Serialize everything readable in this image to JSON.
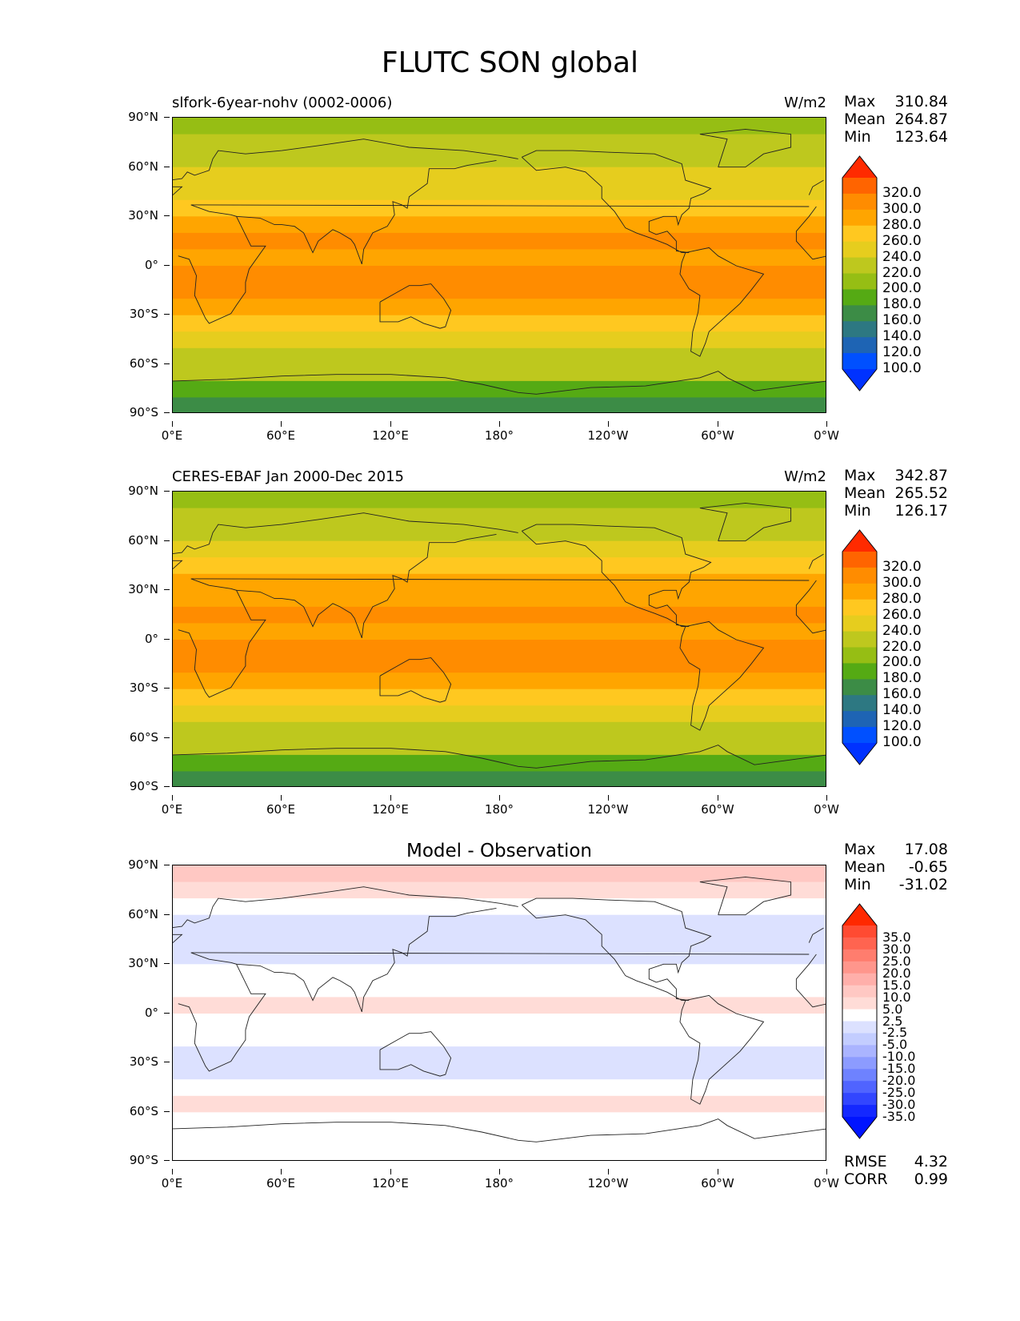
{
  "title": "FLUTC SON global",
  "axes": {
    "yticks": [
      "90°N",
      "60°N",
      "30°N",
      "0°",
      "30°S",
      "60°S",
      "90°S"
    ],
    "xticks": [
      "0°E",
      "60°E",
      "120°E",
      "180°",
      "120°W",
      "60°W",
      "0°W"
    ]
  },
  "panels": [
    {
      "left_title": "slfork-6year-nohv (0002-0006)",
      "units": "W/m2",
      "stats": {
        "max_label": "Max",
        "max": "310.84",
        "mean_label": "Mean",
        "mean": "264.87",
        "min_label": "Min",
        "min": "123.64"
      }
    },
    {
      "left_title": "CERES-EBAF Jan 2000-Dec 2015",
      "units": "W/m2",
      "stats": {
        "max_label": "Max",
        "max": "342.87",
        "mean_label": "Mean",
        "mean": "265.52",
        "min_label": "Min",
        "min": "126.17"
      }
    },
    {
      "center_title": "Model - Observation",
      "stats": {
        "max_label": "Max",
        "max": "17.08",
        "mean_label": "Mean",
        "mean": "-0.65",
        "min_label": "Min",
        "min": "-31.02"
      },
      "metrics": {
        "rmse_label": "RMSE",
        "rmse": "4.32",
        "corr_label": "CORR",
        "corr": "0.99"
      }
    }
  ],
  "colorbars": {
    "field": {
      "labels": [
        "320.0",
        "300.0",
        "280.0",
        "260.0",
        "240.0",
        "220.0",
        "200.0",
        "180.0",
        "160.0",
        "140.0",
        "120.0",
        "100.0"
      ],
      "colors": [
        "#ff2a00",
        "#ff6400",
        "#ff8c00",
        "#ffa500",
        "#ffc820",
        "#e6cd1e",
        "#bec81e",
        "#96be14",
        "#55aa14",
        "#3c8c46",
        "#2d7882",
        "#1e64b4",
        "#0050ff",
        "#0032ff"
      ]
    },
    "diff": {
      "labels": [
        "35.0",
        "30.0",
        "25.0",
        "20.0",
        "15.0",
        "10.0",
        "5.0",
        "2.5",
        "-2.5",
        "-5.0",
        "-10.0",
        "-15.0",
        "-20.0",
        "-25.0",
        "-30.0",
        "-35.0"
      ],
      "colors": [
        "#ff2800",
        "#ff4b32",
        "#ff6450",
        "#ff7d6e",
        "#ff968c",
        "#ffafaa",
        "#ffc8c3",
        "#ffdcd7",
        "#ffffff",
        "#dce1ff",
        "#c3cdff",
        "#aab4ff",
        "#8c9bff",
        "#6e82ff",
        "#5064ff",
        "#3246ff",
        "#1428ff",
        "#0014ff"
      ]
    }
  },
  "chart_data": [
    {
      "type": "heatmap",
      "title": "slfork-6year-nohv (0002-0006)",
      "units": "W/m2",
      "x_range": [
        0,
        360
      ],
      "y_range": [
        -90,
        90
      ],
      "xlabel": "",
      "ylabel": "",
      "levels": [
        100,
        120,
        140,
        160,
        180,
        200,
        220,
        240,
        260,
        280,
        300,
        320
      ],
      "lat_band_mean": {
        "lat": [
          85,
          75,
          65,
          55,
          45,
          35,
          25,
          15,
          5,
          -5,
          -15,
          -25,
          -35,
          -45,
          -55,
          -65,
          -75,
          -85
        ],
        "value": [
          190,
          200,
          215,
          225,
          235,
          255,
          275,
          282,
          278,
          285,
          280,
          272,
          255,
          235,
          215,
          200,
          170,
          150
        ]
      },
      "stats": {
        "max": 310.84,
        "mean": 264.87,
        "min": 123.64
      }
    },
    {
      "type": "heatmap",
      "title": "CERES-EBAF Jan 2000-Dec 2015",
      "units": "W/m2",
      "x_range": [
        0,
        360
      ],
      "y_range": [
        -90,
        90
      ],
      "xlabel": "",
      "ylabel": "",
      "levels": [
        100,
        120,
        140,
        160,
        180,
        200,
        220,
        240,
        260,
        280,
        300,
        320
      ],
      "lat_band_mean": {
        "lat": [
          85,
          75,
          65,
          55,
          45,
          35,
          25,
          15,
          5,
          -5,
          -15,
          -25,
          -35,
          -45,
          -55,
          -65,
          -75,
          -85
        ],
        "value": [
          195,
          205,
          210,
          225,
          240,
          260,
          278,
          282,
          272,
          282,
          285,
          275,
          255,
          235,
          215,
          200,
          165,
          145
        ]
      },
      "stats": {
        "max": 342.87,
        "mean": 265.52,
        "min": 126.17
      }
    },
    {
      "type": "heatmap",
      "title": "Model - Observation",
      "x_range": [
        0,
        360
      ],
      "y_range": [
        -90,
        90
      ],
      "xlabel": "",
      "ylabel": "",
      "levels": [
        -35,
        -30,
        -25,
        -20,
        -15,
        -10,
        -5,
        -2.5,
        2.5,
        5,
        10,
        15,
        20,
        25,
        30,
        35
      ],
      "lat_band_mean": {
        "lat": [
          85,
          75,
          65,
          55,
          45,
          35,
          25,
          15,
          5,
          -5,
          -15,
          -25,
          -35,
          -45,
          -55,
          -65,
          -75,
          -85
        ],
        "value": [
          6,
          3,
          1,
          -3,
          -5,
          -4,
          -1,
          2,
          4,
          2,
          -2,
          -5,
          -4,
          0,
          3,
          1,
          -1,
          0
        ]
      },
      "stats": {
        "max": 17.08,
        "mean": -0.65,
        "min": -31.02
      },
      "metrics": {
        "rmse": 4.32,
        "corr": 0.99
      }
    }
  ]
}
